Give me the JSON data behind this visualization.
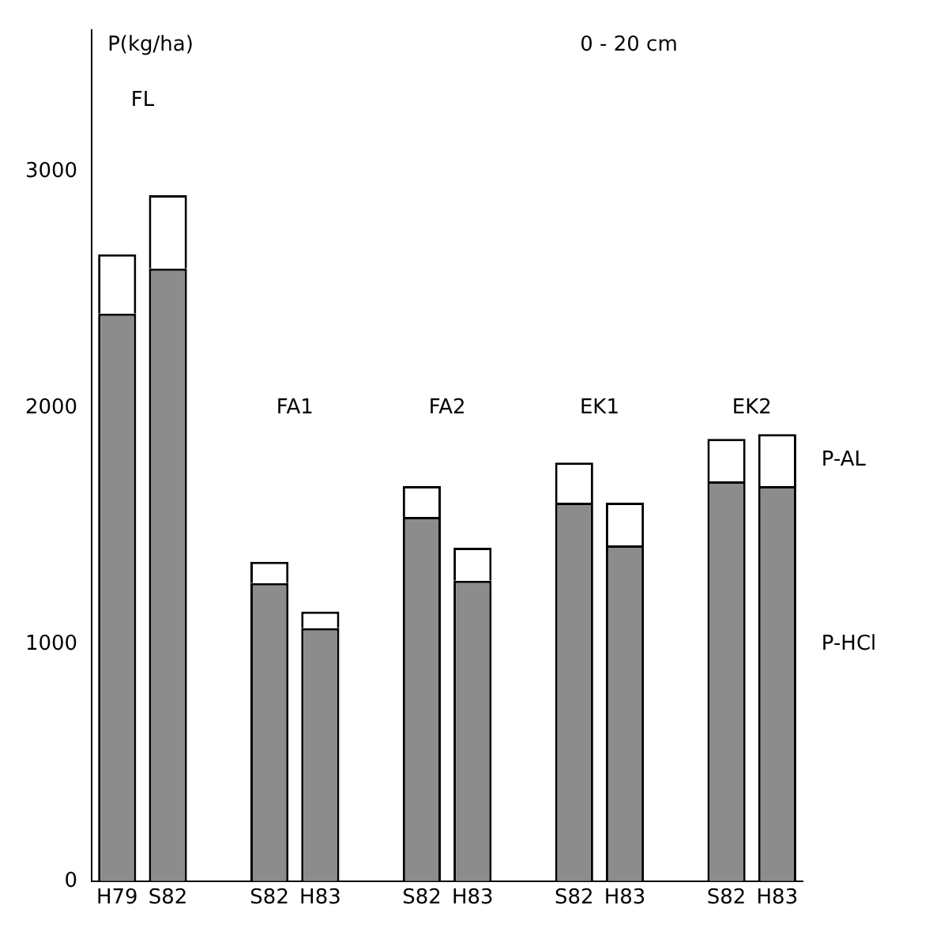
{
  "chart_data": {
    "type": "bar",
    "stacked": true,
    "ylabel": "P(kg/ha)",
    "categories": [
      "H79",
      "S82",
      null,
      "S82",
      "H83",
      null,
      "S82",
      "H83",
      null,
      "S82",
      "H83",
      null,
      "S82",
      "H83"
    ],
    "series": [
      {
        "name": "P-HCl",
        "color": "#8c8c8c",
        "values": [
          2400,
          2590,
          null,
          1260,
          1070,
          null,
          1540,
          1270,
          null,
          1600,
          1420,
          null,
          1690,
          1670
        ]
      },
      {
        "name": "P-AL",
        "color": "#ffffff",
        "values": [
          250,
          310,
          null,
          90,
          70,
          null,
          130,
          140,
          null,
          170,
          180,
          null,
          180,
          220
        ]
      }
    ],
    "ylim": [
      0,
      3600
    ],
    "yticks": [
      0,
      1000,
      2000,
      3000
    ],
    "grid": false,
    "legend": false,
    "annotations": [
      "FL",
      "FA1",
      "FA2",
      "EK1",
      "EK2",
      "0 - 20 cm"
    ]
  }
}
